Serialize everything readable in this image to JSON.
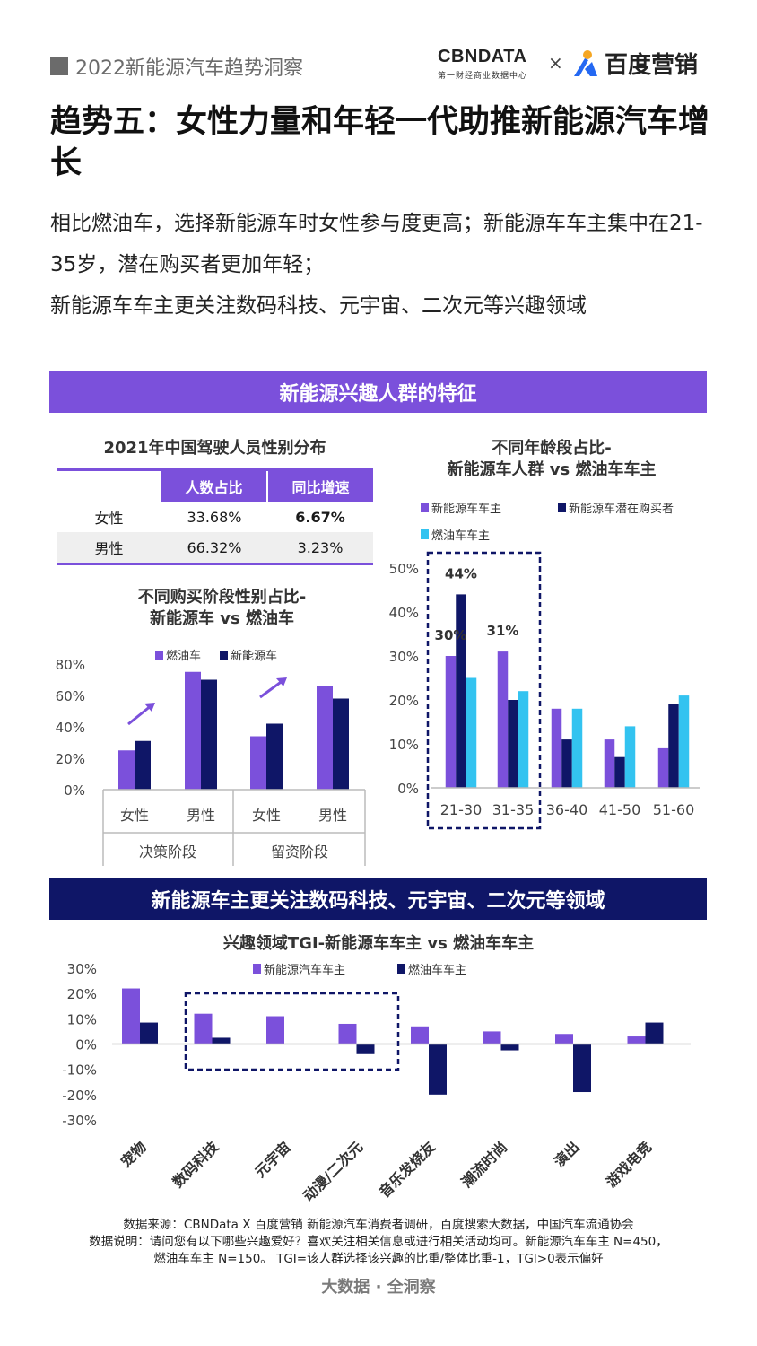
{
  "header": {
    "report_title": "2022新能源汽车趋势洞察",
    "cbn_logo_text": "CBNDATA",
    "cbn_logo_subtitle": "第一财经商业数据中心",
    "times": "×",
    "baidu_logo_text": "百度营销"
  },
  "headline": "趋势五：女性力量和年轻一代助推新能源汽车增长",
  "description": [
    "相比燃油车，选择新能源车时女性参与度更高；新能源车车主集中在21-35岁，潜在购买者更加年轻；",
    "新能源车车主更关注数码科技、元宇宙、二次元等兴趣领域"
  ],
  "section1_title": "新能源兴趣人群的特征",
  "section2_title": "新能源车主更关注数码科技、元宇宙、二次元等领域",
  "colors": {
    "purple": "#7b50db",
    "navy": "#0f1667",
    "cyan": "#33c3f0"
  },
  "gender_table": {
    "title": "2021年中国驾驶人员性别分布",
    "headers": [
      "人数占比",
      "同比增速"
    ],
    "rows": [
      {
        "label": "女性",
        "share": "33.68%",
        "growth": "6.67%"
      },
      {
        "label": "男性",
        "share": "66.32%",
        "growth": "3.23%"
      }
    ]
  },
  "source": {
    "line1": "数据来源：CBNData X 百度营销 新能源汽车消费者调研，百度搜索大数据，中国汽车流通协会",
    "line2": "数据说明：请问您有以下哪些兴趣爱好？喜欢关注相关信息或进行相关活动均可。新能源汽车车主 N=450，",
    "line3": "燃油车车主 N=150。 TGI=该人群选择该兴趣的比重/整体比重-1，TGI>0表示偏好"
  },
  "footer": "大数据 · 全洞察",
  "chart_data": [
    {
      "type": "bar",
      "title": "不同购买阶段性别占比-新能源车 vs 燃油车",
      "categories": [
        "女性",
        "男性",
        "女性",
        "男性"
      ],
      "groups": [
        "决策阶段",
        "留资阶段"
      ],
      "series": [
        {
          "name": "燃油车",
          "values": [
            25,
            75,
            34,
            66
          ]
        },
        {
          "name": "新能源车",
          "values": [
            31,
            70,
            42,
            58
          ]
        }
      ],
      "yticks": [
        "0%",
        "20%",
        "40%",
        "60%",
        "80%"
      ],
      "ylim": [
        0,
        80
      ],
      "legend": "top"
    },
    {
      "type": "bar",
      "title": "不同年龄段占比-新能源车人群 vs 燃油车车主",
      "categories": [
        "21-30",
        "31-35",
        "36-40",
        "41-50",
        "51-60"
      ],
      "series": [
        {
          "name": "新能源车车主",
          "values": [
            30,
            31,
            18,
            11,
            9
          ]
        },
        {
          "name": "新能源车潜在购买者",
          "values": [
            44,
            20,
            11,
            7,
            19
          ]
        },
        {
          "name": "燃油车车主",
          "values": [
            25,
            22,
            18,
            14,
            21
          ]
        }
      ],
      "data_labels": [
        {
          "series": 0,
          "index": 0,
          "text": "30%"
        },
        {
          "series": 1,
          "index": 0,
          "text": "44%"
        },
        {
          "series": 0,
          "index": 1,
          "text": "31%"
        }
      ],
      "yticks": [
        "0%",
        "10%",
        "20%",
        "30%",
        "40%",
        "50%"
      ],
      "ylim": [
        0,
        50
      ],
      "legend": "top"
    },
    {
      "type": "bar",
      "title": "兴趣领域TGI-新能源车车主 vs 燃油车车主",
      "categories": [
        "宠物",
        "数码科技",
        "元宇宙",
        "动漫/二次元",
        "音乐发烧友",
        "潮流时尚",
        "演出",
        "游戏电竞"
      ],
      "series": [
        {
          "name": "新能源汽车车主",
          "values": [
            22,
            12,
            11,
            8,
            7,
            5,
            4,
            3
          ]
        },
        {
          "name": "燃油车车主",
          "values": [
            8.5,
            2.5,
            0,
            -4,
            -20,
            -2.5,
            -19,
            8.5
          ]
        }
      ],
      "yticks": [
        "-30%",
        "-20%",
        "-10%",
        "0%",
        "10%",
        "20%",
        "30%"
      ],
      "ylim": [
        -30,
        30
      ],
      "legend": "top"
    }
  ]
}
